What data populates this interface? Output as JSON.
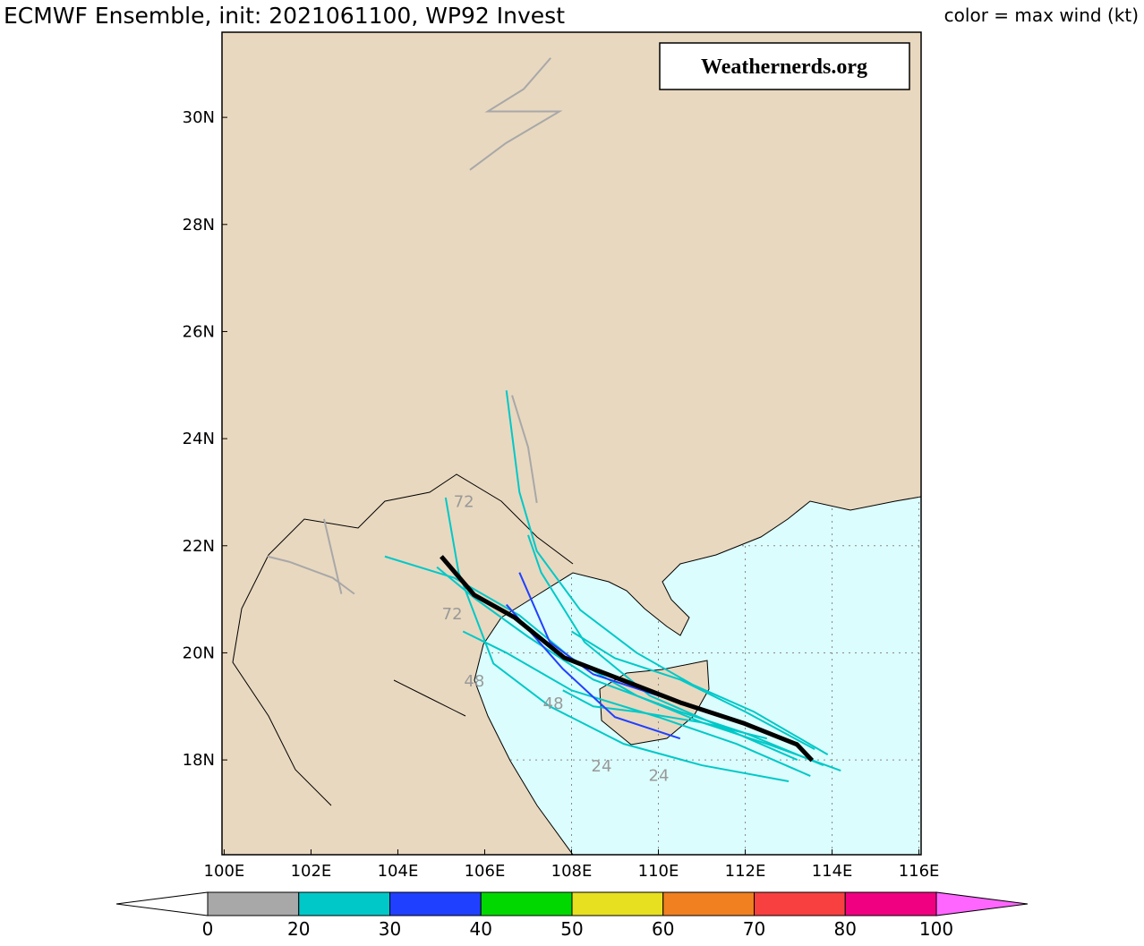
{
  "map": {
    "title": "ECMWF Ensemble, init: 2021061100, WP92 Invest",
    "legend_title": "color = max wind (kt)",
    "watermark": "Weathernerds.org",
    "xlim": [
      99.95,
      116.05
    ],
    "ylim": [
      16.23,
      31.59
    ],
    "xticks": [
      {
        "value": 100,
        "label": "100E"
      },
      {
        "value": 102,
        "label": "102E"
      },
      {
        "value": 104,
        "label": "104E"
      },
      {
        "value": 106,
        "label": "106E"
      },
      {
        "value": 108,
        "label": "108E"
      },
      {
        "value": 110,
        "label": "110E"
      },
      {
        "value": 112,
        "label": "112E"
      },
      {
        "value": 114,
        "label": "114E"
      },
      {
        "value": 116,
        "label": "116E"
      }
    ],
    "yticks": [
      {
        "value": 18,
        "label": "18N"
      },
      {
        "value": 20,
        "label": "20N"
      },
      {
        "value": 22,
        "label": "22N"
      },
      {
        "value": 24,
        "label": "24N"
      },
      {
        "value": 26,
        "label": "26N"
      },
      {
        "value": 28,
        "label": "28N"
      },
      {
        "value": 30,
        "label": "30N"
      }
    ],
    "grid_lon": [
      108,
      110,
      112,
      114,
      116
    ],
    "grid_lat": [
      18,
      20,
      22
    ],
    "colorbar": {
      "levels": [
        0,
        20,
        30,
        40,
        50,
        60,
        70,
        80,
        100
      ],
      "colors": [
        "#a8a8a8",
        "#00c8c8",
        "#2040ff",
        "#00d800",
        "#e6e020",
        "#f08020",
        "#f84040",
        "#f00080"
      ]
    },
    "tracks": [
      {
        "color": "#00c8c8",
        "lon": [
          113.8,
          112,
          110.5,
          108.5,
          107,
          105.8,
          104.9
        ],
        "lat": [
          17.9,
          18.5,
          18.9,
          19.5,
          20.3,
          21.0,
          21.6
        ]
      },
      {
        "color": "#00c8c8",
        "lon": [
          113.5,
          111.8,
          110,
          108,
          106.5,
          105.5
        ],
        "lat": [
          17.7,
          18.3,
          18.8,
          19.3,
          20.0,
          20.4
        ]
      },
      {
        "color": "#00c8c8",
        "lon": [
          113.9,
          112.2,
          110.8,
          109.5,
          108.2,
          107.2,
          106.8,
          106.5
        ],
        "lat": [
          18.1,
          18.9,
          19.4,
          20.0,
          20.8,
          21.9,
          23.0,
          24.9
        ]
      },
      {
        "color": "#00c8c8",
        "lon": [
          113.2,
          111.5,
          109.8,
          108.3,
          107.3,
          107.0
        ],
        "lat": [
          18.0,
          18.6,
          19.2,
          20.2,
          21.5,
          22.2
        ]
      },
      {
        "color": "#00c8c8",
        "lon": [
          114.2,
          112.5,
          111,
          109.5,
          108,
          106.8,
          105.3,
          103.7
        ],
        "lat": [
          17.8,
          18.3,
          18.7,
          19.2,
          19.9,
          20.7,
          21.4,
          21.8
        ]
      },
      {
        "color": "#00c8c8",
        "lon": [
          113.6,
          112.0,
          110.5,
          109.0,
          108.0
        ],
        "lat": [
          18.2,
          18.9,
          19.5,
          19.9,
          20.4
        ]
      },
      {
        "color": "#00c8c8",
        "lon": [
          112.5,
          111.0,
          109.5,
          108.5,
          107.8
        ],
        "lat": [
          18.4,
          18.7,
          18.9,
          19.0,
          19.3
        ]
      },
      {
        "color": "#00c8c8",
        "lon": [
          113.0,
          111.0,
          109.2,
          107.5,
          106.2,
          105.4,
          105.1
        ],
        "lat": [
          17.6,
          17.9,
          18.3,
          19.0,
          19.8,
          21.5,
          22.9
        ]
      },
      {
        "color": "#2040ff",
        "lon": [
          111.5,
          110.0,
          108.5,
          107.5,
          106.8
        ],
        "lat": [
          18.8,
          19.2,
          19.6,
          20.2,
          21.5
        ]
      },
      {
        "color": "#2040ff",
        "lon": [
          110.5,
          109.0,
          107.8,
          106.5
        ],
        "lat": [
          18.4,
          18.8,
          19.7,
          20.9
        ]
      },
      {
        "color": "#a8a8a8",
        "lon": [
          103.0,
          102.5,
          101.5,
          101.0
        ],
        "lat": [
          21.1,
          21.4,
          21.7,
          21.8
        ]
      },
      {
        "color": "#a8a8a8",
        "lon": [
          102.7,
          102.5,
          102.3
        ],
        "lat": [
          21.1,
          21.8,
          22.5
        ]
      },
      {
        "color": "#a8a8a8",
        "lon": [
          105.66,
          106.49,
          107.72,
          106.07,
          106.9,
          107.52
        ],
        "lat": [
          29.02,
          29.52,
          30.11,
          30.11,
          30.53,
          31.11
        ]
      },
      {
        "color": "#a8a8a8",
        "lon": [
          106.63,
          107.0,
          107.2
        ],
        "lat": [
          24.81,
          23.84,
          22.8
        ]
      }
    ],
    "mean_track": {
      "color": "#000000",
      "lon": [
        113.54,
        113.19,
        111.95,
        110.51,
        109.27,
        107.83,
        106.69,
        105.76,
        105.0
      ],
      "lat": [
        17.99,
        18.29,
        18.69,
        19.07,
        19.46,
        19.91,
        20.66,
        21.08,
        21.8
      ]
    },
    "hour_labels": [
      {
        "text": "24",
        "lon": 108.69,
        "lat": 17.9
      },
      {
        "text": "24",
        "lon": 110.01,
        "lat": 17.73
      },
      {
        "text": "48",
        "lon": 107.58,
        "lat": 19.07
      },
      {
        "text": "48",
        "lon": 105.76,
        "lat": 19.49
      },
      {
        "text": "72",
        "lon": 105.52,
        "lat": 22.84
      },
      {
        "text": "72",
        "lon": 105.25,
        "lat": 20.74
      }
    ]
  }
}
